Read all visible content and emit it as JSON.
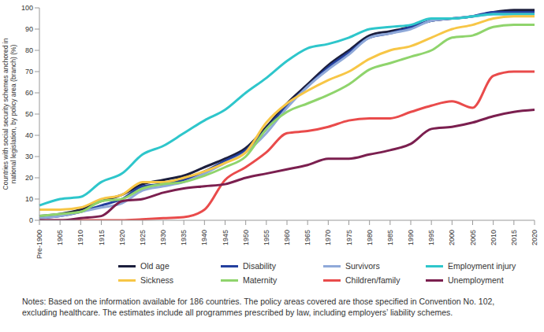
{
  "chart_data": {
    "type": "line",
    "y_label": "Countries with social security schemes anchored in national legislation, by policy area (branch) (%)",
    "notes": "Notes: Based on the information available for 186 countries. The policy areas covered are those specified in Convention No. 102, excluding healthcare. The estimates include all programmes prescribed by law, including employers’ liability schemes.",
    "categories": [
      "Pre-1900",
      "1905",
      "1910",
      "1915",
      "1920",
      "1925",
      "1930",
      "1935",
      "1940",
      "1945",
      "1950",
      "1955",
      "1960",
      "1965",
      "1970",
      "1975",
      "1980",
      "1985",
      "1990",
      "1995",
      "2000",
      "2005",
      "2010",
      "2015",
      "2020"
    ],
    "ylim": [
      0,
      100
    ],
    "yticks": [
      0,
      10,
      20,
      30,
      40,
      50,
      60,
      70,
      80,
      90,
      100
    ],
    "grid": false,
    "legend": "bottom",
    "series": [
      {
        "name": "Old age",
        "color": "#1c1f3d",
        "values": [
          2,
          3,
          5,
          9,
          12,
          17,
          19,
          21,
          25,
          29,
          34,
          44,
          55,
          64,
          73,
          80,
          87,
          89,
          91,
          94,
          95,
          96,
          98,
          99,
          99
        ]
      },
      {
        "name": "Disability",
        "color": "#233f9e",
        "values": [
          1,
          2,
          4,
          7,
          10,
          16,
          17,
          19,
          23,
          28,
          33,
          43,
          54,
          63,
          72,
          79,
          86,
          88,
          91,
          94,
          95,
          96,
          98,
          98,
          98
        ]
      },
      {
        "name": "Survivors",
        "color": "#8fa9d9",
        "values": [
          1,
          2,
          4,
          6,
          8,
          14,
          16,
          18,
          22,
          27,
          32,
          41,
          53,
          63,
          71,
          78,
          86,
          88,
          90,
          94,
          95,
          96,
          97,
          97,
          97
        ]
      },
      {
        "name": "Employment injury",
        "color": "#2ec6cb",
        "values": [
          7,
          10,
          11,
          18,
          22,
          31,
          35,
          41,
          47,
          52,
          60,
          67,
          75,
          81,
          83,
          86,
          90,
          91,
          92,
          95,
          95,
          96,
          97,
          97,
          97
        ]
      },
      {
        "name": "Sickness",
        "color": "#f7c646",
        "values": [
          5,
          5,
          6,
          10,
          12,
          18,
          18,
          20,
          23,
          27,
          32,
          46,
          55,
          61,
          66,
          70,
          76,
          80,
          82,
          86,
          90,
          92,
          95,
          96,
          96
        ]
      },
      {
        "name": "Maternity",
        "color": "#8fd46c",
        "values": [
          2,
          3,
          4,
          9,
          10,
          15,
          17,
          18,
          21,
          25,
          30,
          43,
          51,
          55,
          59,
          64,
          71,
          74,
          77,
          80,
          86,
          87,
          91,
          92,
          92
        ]
      },
      {
        "name": "Children/family",
        "color": "#e94b4b",
        "values": [
          0,
          0,
          0,
          0,
          0,
          0.5,
          1,
          1.5,
          5,
          19,
          25,
          32,
          41,
          42,
          44,
          47,
          48,
          48,
          51,
          54,
          56,
          53,
          68,
          70,
          70
        ]
      },
      {
        "name": "Unemployment",
        "color": "#7b1f4f",
        "values": [
          0,
          0,
          1,
          2,
          9,
          10,
          13,
          15,
          16,
          17,
          20,
          22,
          24,
          26,
          29,
          29,
          31,
          33,
          36,
          43,
          44,
          46,
          49,
          51,
          52
        ]
      }
    ]
  }
}
